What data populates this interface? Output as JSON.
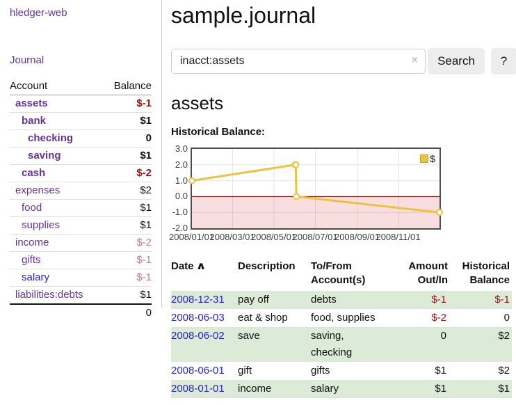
{
  "colors": {
    "link_purple": "#663399",
    "link_blue": "#2323d3",
    "negative_strong": "#991414",
    "negative_muted": "#bd7f7f",
    "row_green": "#dcead8",
    "chart_line_gold": "#edc240",
    "chart_negative_fill": "#f9dcdc",
    "chart_zero_line": "#8b0000",
    "button_gray": "#ededed"
  },
  "sidebar": {
    "app_title": "hledger-web",
    "journal_link": "Journal",
    "accounts": {
      "headers": {
        "account": "Account",
        "balance": "Balance"
      },
      "rows": [
        {
          "name": "assets",
          "balance": "$-1"
        },
        {
          "name": "bank",
          "balance": "$1"
        },
        {
          "name": "checking",
          "balance": "0"
        },
        {
          "name": "saving",
          "balance": "$1"
        },
        {
          "name": "cash",
          "balance": "$-2"
        },
        {
          "name": "expenses",
          "balance": "$2"
        },
        {
          "name": "food",
          "balance": "$1"
        },
        {
          "name": "supplies",
          "balance": "$1"
        },
        {
          "name": "income",
          "balance": "$-2"
        },
        {
          "name": "gifts",
          "balance": "$-1"
        },
        {
          "name": "salary",
          "balance": "$-1"
        },
        {
          "name": "liabilities:debts",
          "balance": "$1"
        }
      ],
      "total": "0"
    }
  },
  "main": {
    "title": "sample.journal",
    "search": {
      "value": "inacct:assets",
      "clear_icon": "×",
      "button_label": "Search",
      "help_label": "?"
    },
    "account_heading": "assets",
    "chart_title": "Historical Balance:"
  },
  "chart_data": {
    "type": "line",
    "title": "Historical Balance",
    "legend": {
      "label": "$",
      "position": "top-right"
    },
    "ylim": [
      -2,
      3
    ],
    "x_range_days": [
      0,
      365
    ],
    "grid": true,
    "negative_region_shaded": true,
    "series": [
      {
        "name": "$",
        "color": "#edc240",
        "points": [
          {
            "date": "2008-01-01",
            "day": 0,
            "value": 1
          },
          {
            "date": "2008-06-01",
            "day": 152,
            "value": 2
          },
          {
            "date": "2008-06-02",
            "day": 153,
            "value": 2
          },
          {
            "date": "2008-06-03",
            "day": 154,
            "value": 0
          },
          {
            "date": "2008-12-31",
            "day": 365,
            "value": -1
          }
        ]
      }
    ],
    "yticks": [
      {
        "label": "3.0",
        "value": 3
      },
      {
        "label": "2.0",
        "value": 2
      },
      {
        "label": "1.0",
        "value": 1
      },
      {
        "label": "0.0",
        "value": 0
      },
      {
        "label": "-1.0",
        "value": -1
      },
      {
        "label": "-2.0",
        "value": -2
      }
    ],
    "xticks": [
      {
        "label": "2008/01/01",
        "day": 0
      },
      {
        "label": "2008/03/01",
        "day": 60
      },
      {
        "label": "2008/05/01",
        "day": 121
      },
      {
        "label": "2008/07/01",
        "day": 182
      },
      {
        "label": "2008/09/01",
        "day": 244
      },
      {
        "label": "2008/11/01",
        "day": 305
      }
    ]
  },
  "transactions": {
    "headers": {
      "date": "Date",
      "sort_icon": "∧",
      "description": "Description",
      "accounts": "To/From Account(s)",
      "amount": "Amount Out/In",
      "balance": "Historical Balance"
    },
    "rows": [
      {
        "date": "2008-12-31",
        "description": "pay off",
        "accounts": "debts",
        "amount": "$-1",
        "balance": "$-1"
      },
      {
        "date": "2008-06-03",
        "description": "eat & shop",
        "accounts": "food, supplies",
        "amount": "$-2",
        "balance": "0"
      },
      {
        "date": "2008-06-02",
        "description": "save",
        "accounts": "saving, checking",
        "amount": "0",
        "balance": "$2"
      },
      {
        "date": "2008-06-01",
        "description": "gift",
        "accounts": "gifts",
        "amount": "$1",
        "balance": "$2"
      },
      {
        "date": "2008-01-01",
        "description": "income",
        "accounts": "salary",
        "amount": "$1",
        "balance": "$1"
      }
    ]
  }
}
